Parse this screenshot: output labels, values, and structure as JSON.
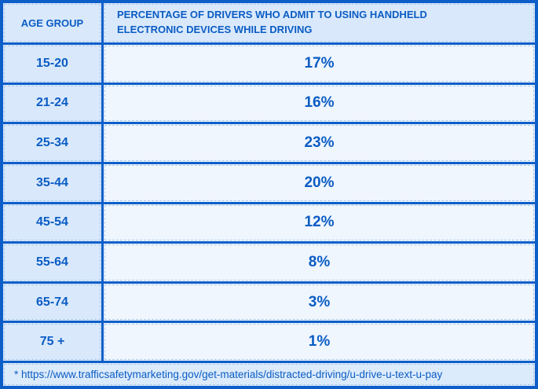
{
  "table": {
    "header": {
      "age_col": "AGE GROUP",
      "pct_col": "PERCENTAGE OF DRIVERS WHO ADMIT TO USING HANDHELD ELECTRONIC DEVICES WHILE DRIVING"
    },
    "rows": [
      {
        "age": "15-20",
        "pct": "17%"
      },
      {
        "age": "21-24",
        "pct": "16%"
      },
      {
        "age": "25-34",
        "pct": "23%"
      },
      {
        "age": "35-44",
        "pct": "20%"
      },
      {
        "age": "45-54",
        "pct": "12%"
      },
      {
        "age": "55-64",
        "pct": "8%"
      },
      {
        "age": "65-74",
        "pct": "3%"
      },
      {
        "age": "75 +",
        "pct": "1%"
      }
    ],
    "footnote": "* https://www.trafficsafetymarketing.gov/get-materials/distracted-driving/u-drive-u-text-u-pay"
  },
  "colors": {
    "blue": "#0e5ec9",
    "text_blue": "#0b5cc4",
    "cell_dark": "#d9e9fb",
    "cell_light": "#eff6fd",
    "footer_bg": "#dcebfb",
    "dash": "#a9c9ec"
  },
  "chart_data": {
    "type": "table",
    "columns": [
      "AGE GROUP",
      "PERCENTAGE OF DRIVERS WHO ADMIT TO USING HANDHELD ELECTRONIC DEVICES WHILE DRIVING"
    ],
    "categories": [
      "15-20",
      "21-24",
      "25-34",
      "35-44",
      "45-54",
      "55-64",
      "65-74",
      "75 +"
    ],
    "values": [
      17,
      16,
      23,
      20,
      12,
      8,
      3,
      1
    ],
    "value_unit": "%",
    "source": "* https://www.trafficsafetymarketing.gov/get-materials/distracted-driving/u-drive-u-text-u-pay"
  }
}
